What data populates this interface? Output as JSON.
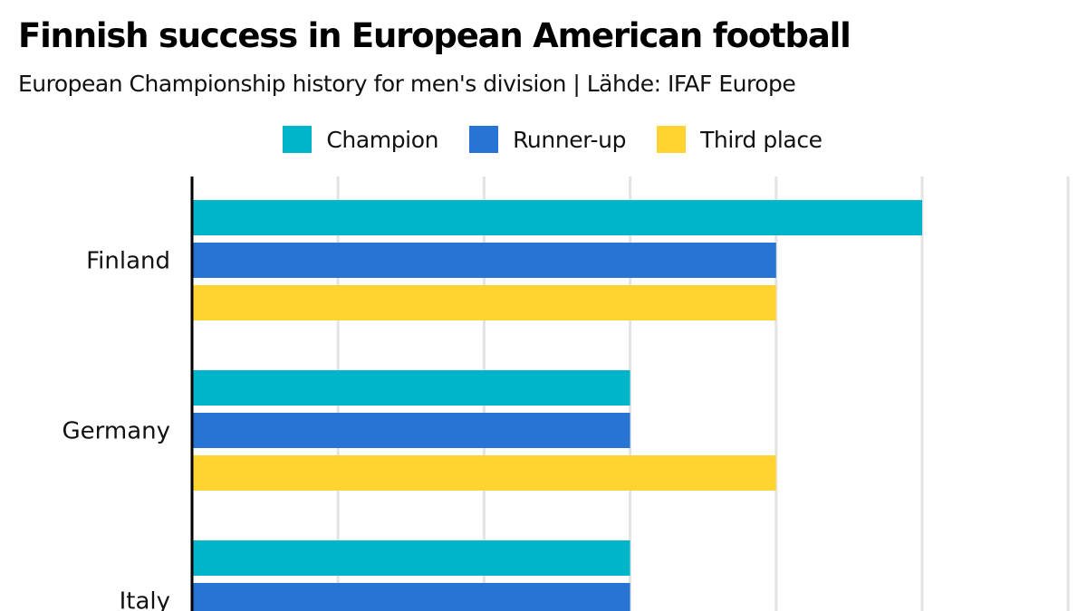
{
  "title": "Finnish success in European American football",
  "subtitle": "European Championship history for men's division | Lähde: IFAF Europe",
  "chart_data": {
    "type": "bar",
    "orientation": "horizontal",
    "categories": [
      "Finland",
      "Germany",
      "Italy"
    ],
    "series": [
      {
        "name": "Champion",
        "color": "#00b5c9",
        "values": [
          5,
          3,
          3
        ]
      },
      {
        "name": "Runner-up",
        "color": "#2874d4",
        "values": [
          4,
          3,
          3
        ]
      },
      {
        "name": "Third place",
        "color": "#ffd431",
        "values": [
          4,
          4,
          null
        ]
      }
    ],
    "xlim": [
      0,
      6
    ],
    "grid": true,
    "legend_position": "top-center"
  }
}
